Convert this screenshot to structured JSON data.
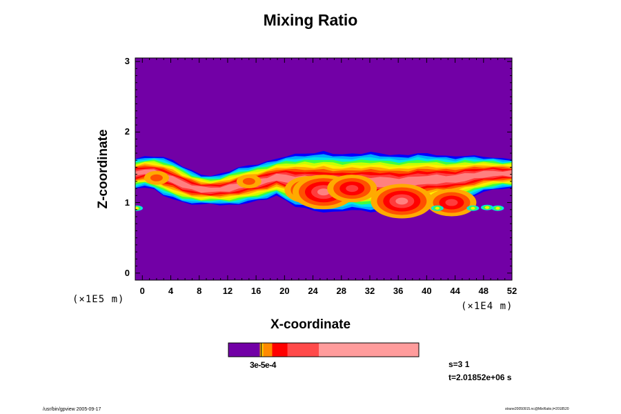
{
  "chart_data": {
    "type": "heatmap",
    "title": "Mixing Ratio",
    "xlabel": "X-coordinate",
    "ylabel": "Z-coordinate",
    "x_unit_label": "(×1E4 m)",
    "y_unit_label": "(×1E5 m)",
    "xlim": [
      -1,
      52
    ],
    "ylim": [
      -0.1,
      3.05
    ],
    "x_ticks": [
      "0",
      "4",
      "8",
      "12",
      "16",
      "20",
      "24",
      "28",
      "32",
      "36",
      "40",
      "44",
      "48",
      "52"
    ],
    "y_ticks": [
      "0",
      "1",
      "2",
      "3"
    ],
    "background_color": "#7200a6",
    "cloud_layer": {
      "bottom": [
        1.2,
        1.22,
        1.18,
        1.1,
        1.05,
        1.0,
        0.98,
        0.97,
        0.98,
        0.97,
        0.96,
        0.97,
        1.0,
        1.02,
        1.05,
        1.1,
        1.02,
        0.95,
        0.92,
        0.88,
        0.87,
        0.86,
        0.88,
        0.9,
        0.88,
        0.87,
        0.88,
        0.9,
        0.89,
        0.9,
        0.92,
        0.95,
        0.98,
        1.0,
        1.02,
        1.05,
        1.1,
        1.15,
        1.18,
        1.2,
        1.2
      ],
      "top": [
        1.62,
        1.65,
        1.66,
        1.64,
        1.6,
        1.52,
        1.45,
        1.4,
        1.38,
        1.4,
        1.45,
        1.5,
        1.52,
        1.55,
        1.58,
        1.62,
        1.66,
        1.68,
        1.7,
        1.7,
        1.72,
        1.7,
        1.68,
        1.69,
        1.7,
        1.71,
        1.7,
        1.68,
        1.67,
        1.68,
        1.7,
        1.69,
        1.68,
        1.66,
        1.65,
        1.67,
        1.66,
        1.65,
        1.64,
        1.62,
        1.62
      ],
      "color_bands": [
        "#0000ff",
        "#00aaff",
        "#00e5e5",
        "#40ff40",
        "#c8ff00",
        "#ffee00",
        "#ffaa00",
        "#ff5000",
        "#ff0000",
        "#ff3c3c",
        "#ff8080"
      ],
      "hot_spots": [
        {
          "x": 23.5,
          "z": 1.18,
          "level": 3
        },
        {
          "x": 25.5,
          "z": 1.15,
          "level": 4
        },
        {
          "x": 29.5,
          "z": 1.2,
          "level": 3
        },
        {
          "x": 36.5,
          "z": 1.02,
          "level": 4
        },
        {
          "x": 43.5,
          "z": 1.0,
          "level": 3
        },
        {
          "x": 15.0,
          "z": 1.3,
          "level": 1
        },
        {
          "x": 2.0,
          "z": 1.35,
          "level": 1
        }
      ],
      "detached_cells": [
        {
          "x": 41.5,
          "z": 0.92
        },
        {
          "x": 46.5,
          "z": 0.92
        },
        {
          "x": 48.5,
          "z": 0.93
        },
        {
          "x": 50.0,
          "z": 0.92
        },
        {
          "x": -0.8,
          "z": 0.92
        }
      ]
    },
    "colorbar": {
      "segments": [
        {
          "color": "#7200a6",
          "fraction": 0.165
        },
        {
          "color": "#f0a000",
          "fraction": 0.006
        },
        {
          "color": "#1a1a1a",
          "fraction": 0.004
        },
        {
          "color": "#ffcc00",
          "fraction": 0.008
        },
        {
          "color": "#ff8a00",
          "fraction": 0.047
        },
        {
          "color": "#ff0000",
          "fraction": 0.08
        },
        {
          "color": "#ff4a4a",
          "fraction": 0.165
        },
        {
          "color": "#ff9c9c",
          "fraction": 0.525
        }
      ],
      "label_text": "3e-5e-4"
    },
    "info": {
      "s_text": "s=3 1",
      "t_text": "t=2.01852e+06 s"
    },
    "footer": {
      "left": "/usr/bin/gpview 2005-09-17",
      "right": "strane20050915.nc@MixRatio,t=2018520"
    }
  }
}
